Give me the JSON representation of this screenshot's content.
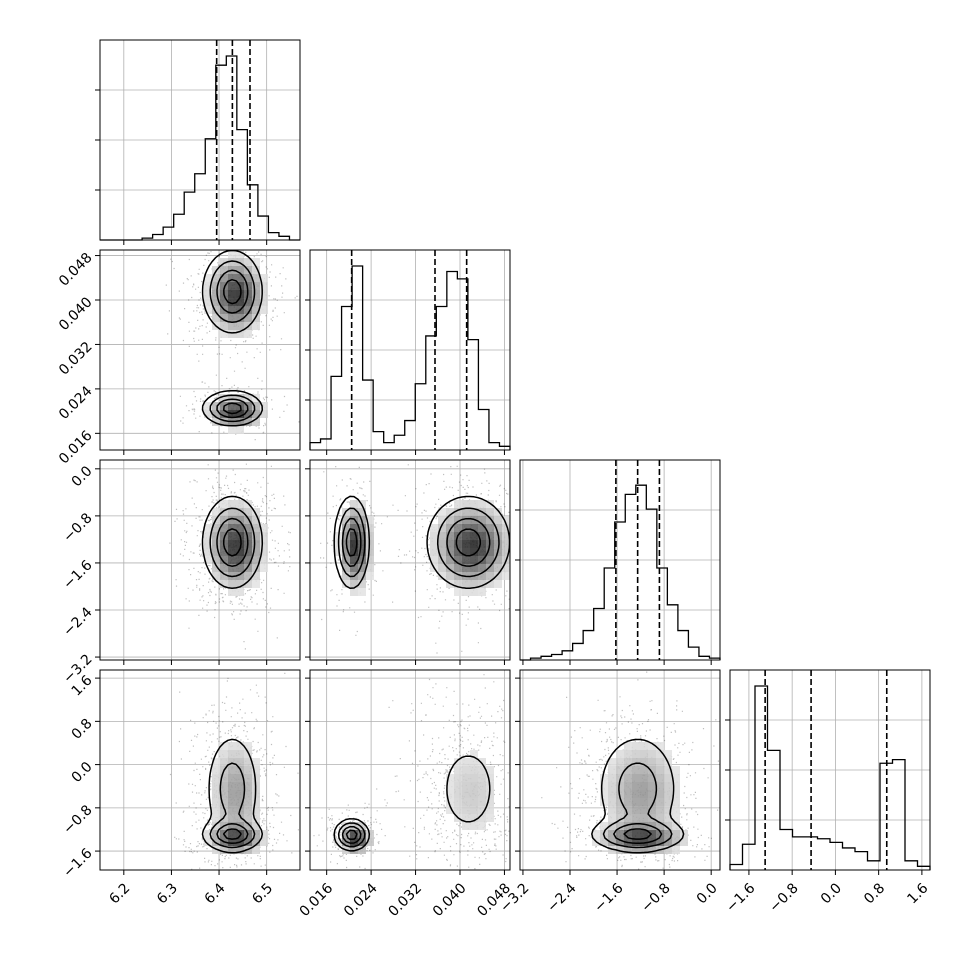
{
  "chart_data": {
    "type": "corner",
    "grid": true,
    "parameters": [
      {
        "range": [
          6.15,
          6.57
        ],
        "ticks": [
          6.2,
          6.3,
          6.4,
          6.5
        ],
        "tick_labels": [
          "6.2",
          "6.3",
          "6.4",
          "6.5"
        ],
        "quantiles": [
          6.395,
          6.428,
          6.465
        ],
        "histogram": [
          0,
          0,
          0,
          0,
          0.01,
          0.03,
          0.07,
          0.14,
          0.26,
          0.36,
          0.55,
          0.95,
          1.0,
          0.6,
          0.3,
          0.13,
          0.04,
          0.02,
          0
        ]
      },
      {
        "range": [
          0.013,
          0.049
        ],
        "ticks": [
          0.016,
          0.024,
          0.032,
          0.04,
          0.048
        ],
        "tick_labels": [
          "0.016",
          "0.024",
          "0.032",
          "0.040",
          "0.048"
        ],
        "quantiles": [
          0.0205,
          0.0355,
          0.0412
        ],
        "histogram": [
          0.04,
          0.06,
          0.4,
          0.78,
          1.0,
          0.38,
          0.1,
          0.04,
          0.08,
          0.16,
          0.36,
          0.62,
          0.78,
          0.97,
          0.93,
          0.6,
          0.22,
          0.04,
          0.02
        ]
      },
      {
        "range": [
          -3.25,
          0.15
        ],
        "ticks": [
          -3.2,
          -2.4,
          -1.6,
          -0.8,
          0.0
        ],
        "tick_labels": [
          "−3.2",
          "−2.4",
          "−1.6",
          "−0.8",
          "0.0"
        ],
        "quantiles": [
          -1.62,
          -1.25,
          -0.88
        ],
        "histogram": [
          0,
          0.01,
          0.02,
          0.03,
          0.05,
          0.09,
          0.16,
          0.28,
          0.5,
          0.75,
          0.9,
          0.95,
          0.82,
          0.5,
          0.3,
          0.16,
          0.07,
          0.02,
          0.01
        ]
      },
      {
        "range": [
          -1.95,
          1.75
        ],
        "ticks": [
          -1.6,
          -0.8,
          0.0,
          0.8,
          1.6
        ],
        "tick_labels": [
          "−1.6",
          "−0.8",
          "0.0",
          "0.8",
          "1.6"
        ],
        "quantiles": [
          -1.3,
          -0.45,
          0.95
        ],
        "histogram": [
          0.03,
          0.14,
          1.0,
          0.65,
          0.22,
          0.18,
          0.18,
          0.17,
          0.15,
          0.12,
          0.1,
          0.05,
          0.58,
          0.6,
          0.05,
          0.02
        ]
      }
    ],
    "density_modes": [
      {
        "mean": [
          6.428,
          0.0415,
          -1.25,
          -0.45
        ],
        "sd": [
          0.032,
          0.0038,
          0.4,
          0.6
        ],
        "weight": 0.7
      },
      {
        "mean": [
          6.428,
          0.0205,
          -1.25,
          -1.3
        ],
        "sd": [
          0.032,
          0.0016,
          0.4,
          0.15
        ],
        "weight": 0.3
      }
    ],
    "colors": {
      "axis": "#000000",
      "grid": "#b0b0b0",
      "points": "#000000"
    }
  }
}
